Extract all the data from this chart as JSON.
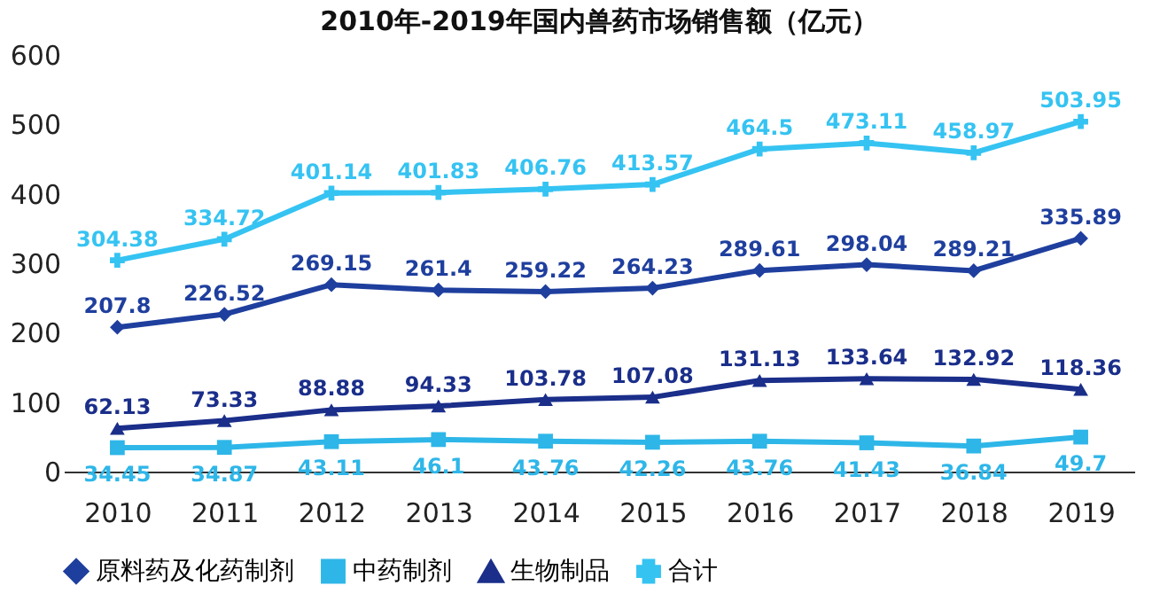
{
  "chart_data": {
    "type": "line",
    "title": "2010年-2019年国内兽药市场销售额（亿元）",
    "categories": [
      "2010",
      "2011",
      "2012",
      "2013",
      "2014",
      "2015",
      "2016",
      "2017",
      "2018",
      "2019"
    ],
    "series": [
      {
        "name": "原料药及化药制剂",
        "color": "#1f3f9e",
        "marker": "diamond",
        "values": [
          207.8,
          226.52,
          269.15,
          261.4,
          259.22,
          264.23,
          289.61,
          298.04,
          289.21,
          335.89
        ]
      },
      {
        "name": "中药制剂",
        "color": "#2eb6e8",
        "marker": "square",
        "values": [
          34.45,
          34.87,
          43.11,
          46.1,
          43.76,
          42.26,
          43.76,
          41.43,
          36.84,
          49.7
        ]
      },
      {
        "name": "生物制品",
        "color": "#1a2e8a",
        "marker": "triangle",
        "values": [
          62.13,
          73.33,
          88.88,
          94.33,
          103.78,
          107.08,
          131.13,
          133.64,
          132.92,
          118.36
        ]
      },
      {
        "name": "合计",
        "color": "#35c3f2",
        "marker": "cross",
        "values": [
          304.38,
          334.72,
          401.14,
          401.83,
          406.76,
          413.57,
          464.5,
          473.11,
          458.97,
          503.95
        ]
      }
    ],
    "ylim": [
      0,
      600
    ],
    "yticks": [
      0,
      100,
      200,
      300,
      400,
      500,
      600
    ],
    "grid": false,
    "legend": "bottom",
    "data_labels": true,
    "line_style": "solid"
  }
}
